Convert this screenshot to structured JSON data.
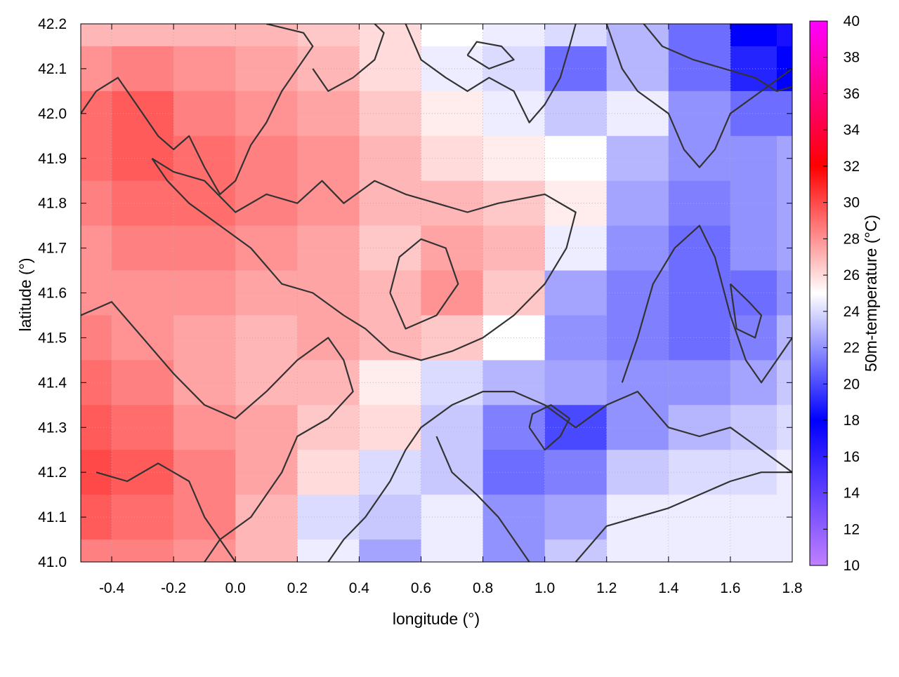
{
  "chart_data": {
    "type": "heatmap",
    "title": "",
    "xlabel": "longitude (°)",
    "ylabel": "latitude (°)",
    "colorbar_label": "50m-temperature (°C)",
    "xlim": [
      -0.5,
      1.8
    ],
    "ylim": [
      41.0,
      42.2
    ],
    "clim": [
      10,
      40
    ],
    "x_ticks": [
      -0.4,
      -0.2,
      0.0,
      0.2,
      0.4,
      0.6,
      0.8,
      1.0,
      1.2,
      1.4,
      1.6,
      1.8
    ],
    "x_tick_labels": [
      "-0.4",
      "-0.2",
      "0.0",
      "0.2",
      "0.4",
      "0.6",
      "0.8",
      "1.0",
      "1.2",
      "1.4",
      "1.6",
      "1.8"
    ],
    "y_ticks": [
      41.0,
      41.1,
      41.2,
      41.3,
      41.4,
      41.5,
      41.6,
      41.7,
      41.8,
      41.9,
      42.0,
      42.1,
      42.2
    ],
    "y_tick_labels": [
      "41.0",
      "41.1",
      "41.2",
      "41.3",
      "41.4",
      "41.5",
      "41.6",
      "41.7",
      "41.8",
      "41.9",
      "42.0",
      "42.1",
      "42.2"
    ],
    "colorbar_ticks": [
      10,
      12,
      14,
      16,
      18,
      20,
      22,
      24,
      26,
      28,
      30,
      32,
      34,
      36,
      38,
      40
    ],
    "colorbar_tick_labels": [
      "10",
      "12",
      "14",
      "16",
      "18",
      "20",
      "22",
      "24",
      "26",
      "28",
      "30",
      "32",
      "34",
      "36",
      "38",
      "40"
    ],
    "colormap": [
      [
        10,
        "#c080ff"
      ],
      [
        18,
        "#0000ff"
      ],
      [
        25,
        "#ffffff"
      ],
      [
        32,
        "#ff0000"
      ],
      [
        40,
        "#ff00ff"
      ]
    ],
    "grid": true,
    "grid_color": "#b0b0b0",
    "contour_color": "#333333",
    "grid_x": [
      -0.5,
      -0.3,
      -0.1,
      0.1,
      0.3,
      0.5,
      0.7,
      0.9,
      1.1,
      1.3,
      1.5,
      1.7,
      1.8
    ],
    "grid_y": [
      42.2,
      42.1,
      42.0,
      41.9,
      41.8,
      41.7,
      41.6,
      41.5,
      41.4,
      41.3,
      41.2,
      41.1,
      41.0
    ],
    "z": [
      [
        27,
        27,
        27,
        27,
        26.5,
        26,
        25,
        24.5,
        24,
        23,
        21,
        18,
        17
      ],
      [
        28,
        28.5,
        28,
        27.5,
        27,
        26,
        24.5,
        24,
        21,
        23,
        21,
        19,
        18
      ],
      [
        29,
        29.5,
        28.5,
        28,
        27.5,
        26.5,
        25.5,
        24.5,
        23.5,
        24.5,
        22,
        21,
        21
      ],
      [
        29,
        29.5,
        29,
        28.5,
        28,
        27,
        26,
        25.5,
        25,
        23,
        22,
        22,
        22.5
      ],
      [
        28.5,
        29,
        29,
        28.5,
        28,
        27,
        27,
        26.5,
        25.5,
        22.5,
        21.5,
        22,
        22.5
      ],
      [
        28,
        28.5,
        28.5,
        28,
        27.5,
        26.5,
        27.5,
        27,
        24.5,
        22,
        21,
        22,
        22.5
      ],
      [
        28,
        28,
        28,
        27.5,
        27.5,
        27,
        28,
        26.5,
        22.5,
        21.5,
        21,
        21,
        22
      ],
      [
        28.5,
        28,
        27.5,
        27,
        27.5,
        27,
        26.5,
        25,
        22,
        21.5,
        21,
        21.5,
        23
      ],
      [
        29,
        28.5,
        27.5,
        27,
        27,
        25.5,
        24,
        23,
        22.5,
        22,
        22,
        22.5,
        23.5
      ],
      [
        29.5,
        29,
        28,
        27.5,
        26.5,
        26,
        23.5,
        21.5,
        20,
        22,
        23,
        23.5,
        24
      ],
      [
        30,
        29.5,
        28.5,
        27.5,
        26,
        24,
        23.5,
        21,
        21.5,
        23.5,
        24,
        24,
        24.5
      ],
      [
        29.5,
        29,
        28.5,
        27,
        24,
        23.5,
        24.5,
        22,
        22.5,
        24.5,
        24.5,
        24.5,
        24.5
      ],
      [
        28.5,
        28.5,
        28,
        27,
        24.5,
        22.5,
        24.5,
        22,
        23.5,
        24.5,
        24.5,
        24.5,
        24.5
      ]
    ],
    "contours": [
      [
        [
          -0.5,
          42.0
        ],
        [
          -0.45,
          42.05
        ],
        [
          -0.38,
          42.08
        ],
        [
          -0.3,
          42.0
        ],
        [
          -0.25,
          41.95
        ],
        [
          -0.2,
          41.92
        ],
        [
          -0.15,
          41.95
        ],
        [
          -0.1,
          41.88
        ],
        [
          -0.05,
          41.82
        ],
        [
          0.0,
          41.85
        ],
        [
          0.05,
          41.93
        ],
        [
          0.1,
          41.98
        ],
        [
          0.15,
          42.05
        ],
        [
          0.2,
          42.1
        ],
        [
          0.25,
          42.15
        ],
        [
          0.22,
          42.18
        ],
        [
          0.1,
          42.2
        ]
      ],
      [
        [
          -0.27,
          41.9
        ],
        [
          -0.2,
          41.87
        ],
        [
          -0.1,
          41.85
        ],
        [
          0.0,
          41.78
        ],
        [
          0.1,
          41.82
        ],
        [
          0.2,
          41.8
        ],
        [
          0.28,
          41.85
        ],
        [
          0.35,
          41.8
        ],
        [
          0.45,
          41.85
        ],
        [
          0.55,
          41.82
        ],
        [
          0.65,
          41.8
        ],
        [
          0.75,
          41.78
        ],
        [
          0.85,
          41.8
        ],
        [
          1.0,
          41.82
        ],
        [
          1.1,
          41.78
        ],
        [
          1.07,
          41.7
        ],
        [
          1.0,
          41.62
        ],
        [
          0.9,
          41.55
        ],
        [
          0.8,
          41.5
        ],
        [
          0.7,
          41.47
        ],
        [
          0.6,
          41.45
        ],
        [
          0.5,
          41.47
        ],
        [
          0.42,
          41.52
        ],
        [
          0.35,
          41.55
        ],
        [
          0.25,
          41.6
        ],
        [
          0.15,
          41.62
        ],
        [
          0.05,
          41.7
        ],
        [
          -0.05,
          41.75
        ],
        [
          -0.15,
          41.8
        ],
        [
          -0.22,
          41.85
        ],
        [
          -0.27,
          41.9
        ]
      ],
      [
        [
          0.5,
          41.6
        ],
        [
          0.55,
          41.52
        ],
        [
          0.65,
          41.55
        ],
        [
          0.72,
          41.62
        ],
        [
          0.68,
          41.7
        ],
        [
          0.6,
          41.72
        ],
        [
          0.53,
          41.68
        ],
        [
          0.5,
          41.6
        ]
      ],
      [
        [
          -0.5,
          41.55
        ],
        [
          -0.4,
          41.58
        ],
        [
          -0.3,
          41.5
        ],
        [
          -0.2,
          41.42
        ],
        [
          -0.1,
          41.35
        ],
        [
          0.0,
          41.32
        ],
        [
          0.1,
          41.38
        ],
        [
          0.2,
          41.45
        ],
        [
          0.3,
          41.5
        ],
        [
          0.35,
          41.45
        ],
        [
          0.38,
          41.38
        ],
        [
          0.3,
          41.32
        ],
        [
          0.2,
          41.28
        ],
        [
          0.15,
          41.2
        ],
        [
          0.1,
          41.15
        ],
        [
          0.05,
          41.1
        ],
        [
          -0.05,
          41.05
        ],
        [
          -0.1,
          41.0
        ]
      ],
      [
        [
          -0.45,
          41.2
        ],
        [
          -0.35,
          41.18
        ],
        [
          -0.25,
          41.22
        ],
        [
          -0.15,
          41.18
        ],
        [
          -0.1,
          41.1
        ],
        [
          -0.05,
          41.05
        ],
        [
          0.0,
          41.0
        ]
      ],
      [
        [
          0.3,
          41.0
        ],
        [
          0.35,
          41.05
        ],
        [
          0.42,
          41.1
        ],
        [
          0.5,
          41.18
        ],
        [
          0.55,
          41.25
        ],
        [
          0.6,
          41.3
        ],
        [
          0.7,
          41.35
        ],
        [
          0.8,
          41.38
        ],
        [
          0.9,
          41.38
        ],
        [
          1.0,
          41.35
        ],
        [
          1.1,
          41.3
        ],
        [
          1.2,
          41.35
        ],
        [
          1.3,
          41.38
        ],
        [
          1.4,
          41.3
        ],
        [
          1.5,
          41.28
        ],
        [
          1.6,
          41.3
        ],
        [
          1.7,
          41.25
        ],
        [
          1.8,
          41.2
        ]
      ],
      [
        [
          0.65,
          41.28
        ],
        [
          0.7,
          41.2
        ],
        [
          0.78,
          41.15
        ],
        [
          0.85,
          41.1
        ],
        [
          0.9,
          41.05
        ],
        [
          0.95,
          41.0
        ]
      ],
      [
        [
          0.95,
          41.3
        ],
        [
          1.0,
          41.25
        ],
        [
          1.05,
          41.28
        ],
        [
          1.08,
          41.32
        ],
        [
          1.02,
          41.35
        ],
        [
          0.96,
          41.33
        ],
        [
          0.95,
          41.3
        ]
      ],
      [
        [
          1.1,
          41.0
        ],
        [
          1.2,
          41.08
        ],
        [
          1.3,
          41.1
        ],
        [
          1.4,
          41.12
        ],
        [
          1.5,
          41.15
        ],
        [
          1.6,
          41.18
        ],
        [
          1.7,
          41.2
        ],
        [
          1.8,
          41.2
        ]
      ],
      [
        [
          1.25,
          41.4
        ],
        [
          1.3,
          41.5
        ],
        [
          1.35,
          41.62
        ],
        [
          1.42,
          41.7
        ],
        [
          1.5,
          41.75
        ],
        [
          1.55,
          41.68
        ],
        [
          1.6,
          41.55
        ],
        [
          1.65,
          41.45
        ],
        [
          1.7,
          41.4
        ],
        [
          1.75,
          41.45
        ],
        [
          1.8,
          41.5
        ]
      ],
      [
        [
          1.2,
          42.2
        ],
        [
          1.25,
          42.1
        ],
        [
          1.3,
          42.05
        ],
        [
          1.4,
          42.0
        ],
        [
          1.45,
          41.92
        ],
        [
          1.5,
          41.88
        ],
        [
          1.55,
          41.92
        ],
        [
          1.6,
          42.0
        ],
        [
          1.7,
          42.05
        ],
        [
          1.8,
          42.1
        ]
      ],
      [
        [
          0.55,
          42.2
        ],
        [
          0.6,
          42.12
        ],
        [
          0.68,
          42.08
        ],
        [
          0.75,
          42.05
        ],
        [
          0.82,
          42.08
        ],
        [
          0.9,
          42.05
        ],
        [
          0.95,
          41.98
        ],
        [
          1.0,
          42.02
        ],
        [
          1.05,
          42.08
        ],
        [
          1.08,
          42.15
        ],
        [
          1.1,
          42.2
        ]
      ],
      [
        [
          0.25,
          42.1
        ],
        [
          0.3,
          42.05
        ],
        [
          0.38,
          42.08
        ],
        [
          0.45,
          42.12
        ],
        [
          0.48,
          42.18
        ],
        [
          0.45,
          42.2
        ]
      ],
      [
        [
          0.75,
          42.13
        ],
        [
          0.82,
          42.1
        ],
        [
          0.9,
          42.12
        ],
        [
          0.86,
          42.15
        ],
        [
          0.78,
          42.16
        ],
        [
          0.75,
          42.13
        ]
      ],
      [
        [
          1.32,
          42.2
        ],
        [
          1.38,
          42.15
        ],
        [
          1.48,
          42.12
        ],
        [
          1.58,
          42.1
        ],
        [
          1.68,
          42.08
        ],
        [
          1.75,
          42.05
        ],
        [
          1.8,
          42.06
        ]
      ],
      [
        [
          1.6,
          41.62
        ],
        [
          1.66,
          41.58
        ],
        [
          1.7,
          41.55
        ],
        [
          1.68,
          41.5
        ],
        [
          1.62,
          41.52
        ],
        [
          1.6,
          41.62
        ]
      ]
    ]
  }
}
